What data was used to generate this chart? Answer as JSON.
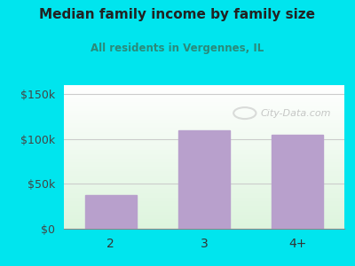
{
  "title": "Median family income by family size",
  "subtitle": "All residents in Vergennes, IL",
  "categories": [
    "2",
    "3",
    "4+"
  ],
  "values": [
    38000,
    110000,
    105000
  ],
  "bar_color": "#b8a0cc",
  "title_color": "#222222",
  "subtitle_color": "#2a8a7a",
  "yticks": [
    0,
    50000,
    100000,
    150000
  ],
  "ytick_labels": [
    "$0",
    "$50k",
    "$100k",
    "$150k"
  ],
  "ylim": [
    0,
    160000
  ],
  "background_outer": "#00e5ee",
  "watermark": "City-Data.com",
  "figsize": [
    4.0,
    3.0
  ],
  "dpi": 100
}
